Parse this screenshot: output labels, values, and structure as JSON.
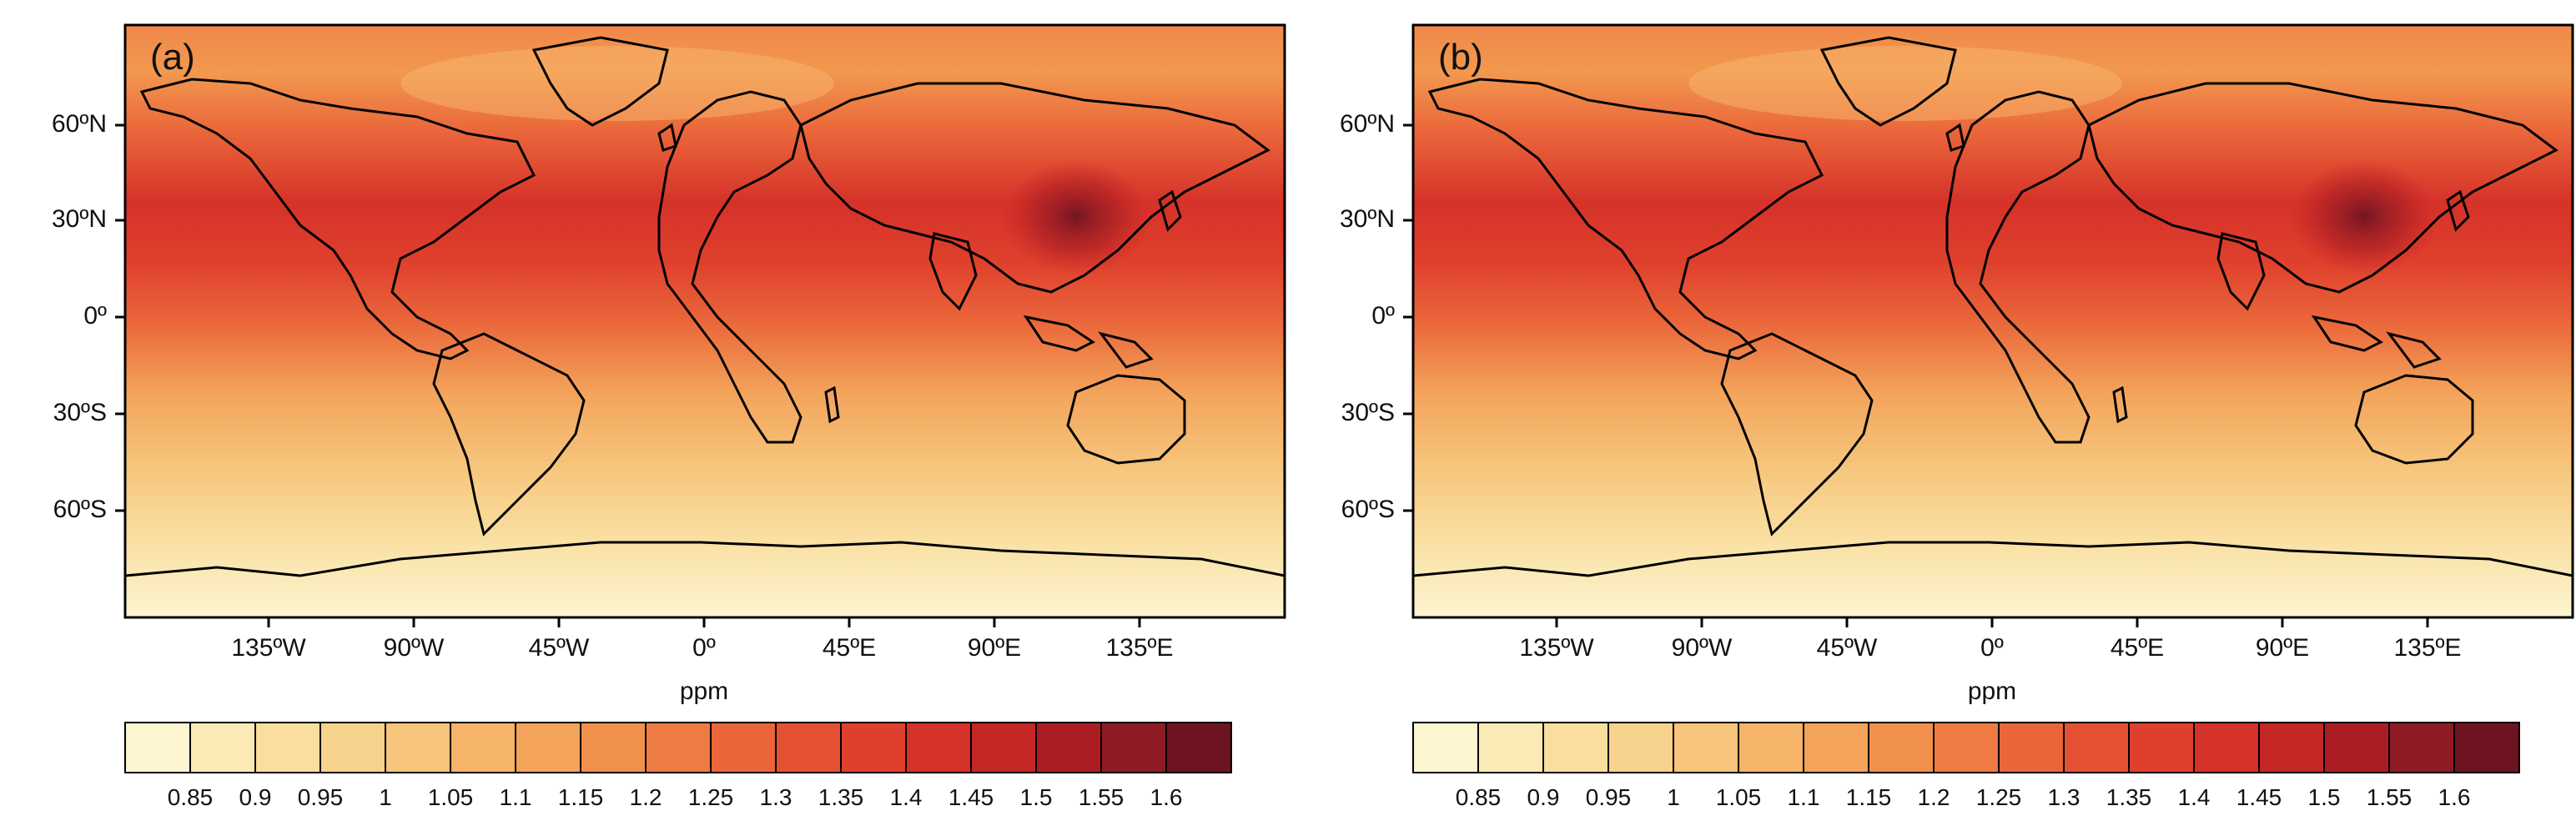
{
  "panels": [
    {
      "label": "(a)",
      "lat_labels": [
        "60ºN",
        "30ºN",
        "0º",
        "30ºS",
        "60ºS"
      ],
      "lon_labels": [
        "135ºW",
        "90ºW",
        "45ºW",
        "0º",
        "45ºE",
        "90ºE",
        "135ºE"
      ],
      "unit": "ppm",
      "colorbar_ticks": [
        "0.85",
        "0.9",
        "0.95",
        "1",
        "1.05",
        "1.1",
        "1.15",
        "1.2",
        "1.25",
        "1.3",
        "1.35",
        "1.4",
        "1.45",
        "1.5",
        "1.55",
        "1.6"
      ]
    },
    {
      "label": "(b)",
      "lat_labels": [
        "60ºN",
        "30ºN",
        "0º",
        "30ºS",
        "60ºS"
      ],
      "lon_labels": [
        "135ºW",
        "90ºW",
        "45ºW",
        "0º",
        "45ºE",
        "90ºE",
        "135ºE"
      ],
      "unit": "ppm",
      "colorbar_ticks": [
        "0.85",
        "0.9",
        "0.95",
        "1",
        "1.05",
        "1.1",
        "1.15",
        "1.2",
        "1.25",
        "1.3",
        "1.35",
        "1.4",
        "1.45",
        "1.5",
        "1.55",
        "1.6"
      ]
    }
  ],
  "colors": {
    "levels": [
      "#fdf5d0",
      "#fbeab6",
      "#f9dea0",
      "#f7d28c",
      "#f6c47a",
      "#f5b468",
      "#f3a35a",
      "#f1904d",
      "#ee7b43",
      "#ea663a",
      "#e55233",
      "#df402d",
      "#d53229",
      "#c52626",
      "#ad1e24",
      "#8e1a23",
      "#6d1420"
    ],
    "land_outline": "#000000"
  }
}
